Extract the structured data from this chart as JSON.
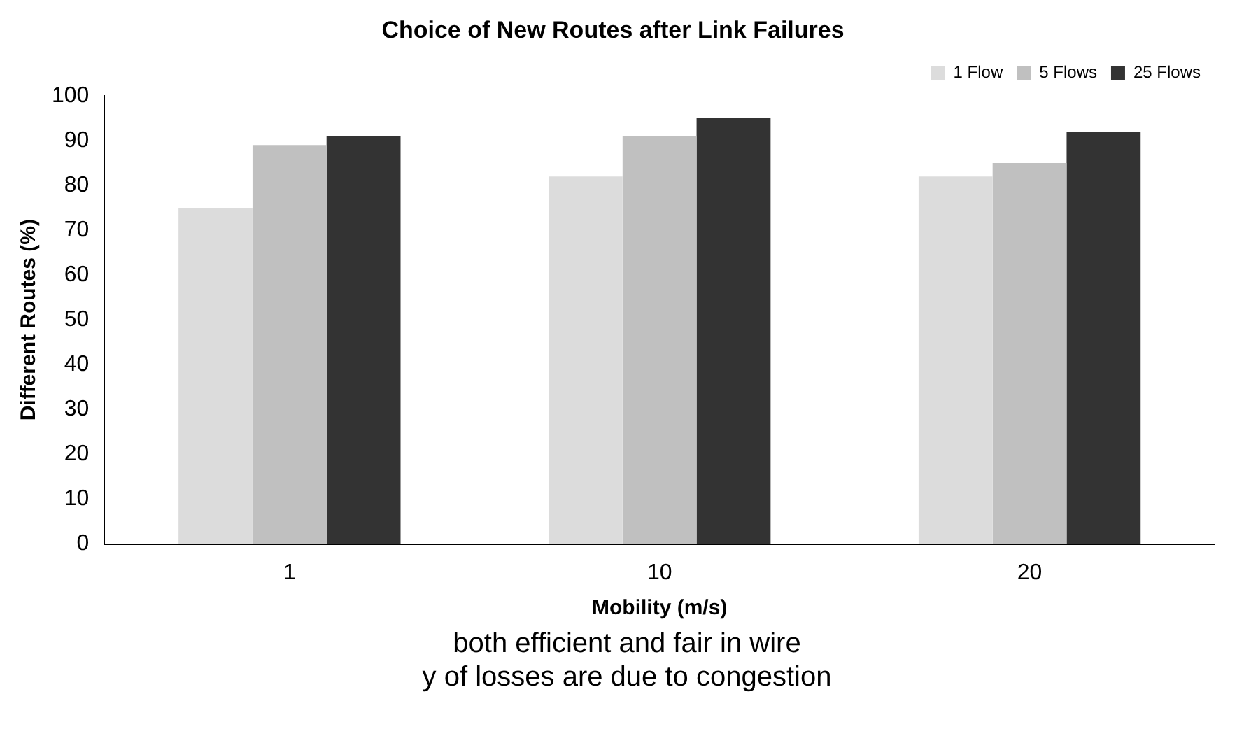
{
  "chart_data": {
    "type": "bar",
    "title": "Choice of New Routes after Link Failures",
    "xlabel": "Mobility (m/s)",
    "ylabel": "Different Routes (%)",
    "categories": [
      "1",
      "10",
      "20"
    ],
    "series": [
      {
        "name": "1 Flow",
        "color": "#dcdcdc",
        "values": [
          75,
          82,
          82
        ]
      },
      {
        "name": "5 Flows",
        "color": "#c0c0c0",
        "values": [
          89,
          91,
          85
        ]
      },
      {
        "name": "25 Flows",
        "color": "#333333",
        "values": [
          91,
          95,
          92
        ]
      }
    ],
    "ylim": [
      0,
      100
    ],
    "yticks": [
      0,
      10,
      20,
      30,
      40,
      50,
      60,
      70,
      80,
      90,
      100
    ],
    "grid": false,
    "legend": "top right",
    "annotations": [
      "both efficient and fair in wire",
      "y of losses are due to congestion"
    ]
  }
}
